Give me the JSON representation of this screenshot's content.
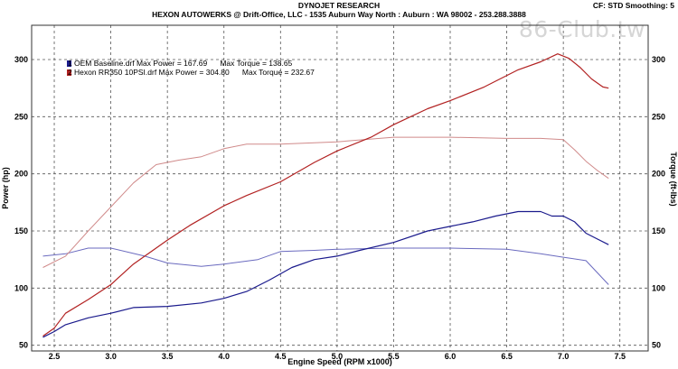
{
  "header": {
    "title": "DYNOJET RESEARCH",
    "subtitle": "HEXON AUTOWERKS @ Drift-Office, LLC - 1535 Auburn Way North : Auburn : WA 98002 - 253.288.3888",
    "settings": "CF: STD   Smoothing: 5"
  },
  "watermark": "86-Club.tw",
  "colors": {
    "baseline": "#1a1a8c",
    "tuned": "#b22222",
    "baseline_torque": "#6a6abf",
    "tuned_torque": "#d08a8a",
    "grid": "#555555"
  },
  "chart_data": {
    "type": "line",
    "xlabel": "Engine Speed (RPM x1000)",
    "ylabel": "Power (hp)",
    "y2label": "Torque (ft-lbs)",
    "xlim": [
      2.3,
      7.75
    ],
    "ylim": [
      45,
      330
    ],
    "xticks": [
      "2.5",
      "3.0",
      "3.5",
      "4.0",
      "4.5",
      "5.0",
      "5.5",
      "6.0",
      "6.5",
      "7.0",
      "7.5"
    ],
    "yticks": [
      "50",
      "100",
      "150",
      "200",
      "250",
      "300"
    ],
    "grid": true,
    "legend_position": "top-left",
    "legend": [
      {
        "marker": "1",
        "text": "OEM Baseline.drf Max Power = 167.69      Max Torque = 138.65"
      },
      {
        "marker": "2",
        "text": "Hexon RR350 10PSI.drf Max Power = 304.80      Max Torque = 232.67"
      }
    ],
    "series": [
      {
        "name": "OEM Baseline.drf Power",
        "color": "#1a1a8c",
        "x": [
          2.4,
          2.5,
          2.6,
          2.8,
          3.0,
          3.2,
          3.5,
          3.8,
          4.0,
          4.2,
          4.4,
          4.6,
          4.8,
          5.0,
          5.2,
          5.5,
          5.8,
          6.0,
          6.2,
          6.4,
          6.6,
          6.8,
          6.9,
          7.0,
          7.1,
          7.2,
          7.3,
          7.4
        ],
        "y": [
          57,
          62,
          68,
          74,
          78,
          83,
          84,
          87,
          91,
          97,
          107,
          118,
          125,
          128,
          133,
          140,
          150,
          154,
          158,
          163,
          167,
          167,
          163,
          163,
          158,
          148,
          143,
          138
        ]
      },
      {
        "name": "Hexon RR350 10PSI.drf Power",
        "color": "#b22222",
        "x": [
          2.4,
          2.5,
          2.6,
          2.8,
          3.0,
          3.2,
          3.5,
          3.7,
          4.0,
          4.2,
          4.5,
          4.8,
          5.0,
          5.3,
          5.5,
          5.8,
          6.0,
          6.3,
          6.6,
          6.8,
          6.95,
          7.05,
          7.15,
          7.25,
          7.35,
          7.4
        ],
        "y": [
          58,
          65,
          78,
          90,
          103,
          121,
          142,
          155,
          172,
          181,
          193,
          210,
          220,
          232,
          243,
          257,
          264,
          276,
          291,
          298,
          305,
          301,
          293,
          283,
          276,
          275
        ]
      },
      {
        "name": "OEM Baseline.drf Torque",
        "color": "#6a6abf",
        "x": [
          2.4,
          2.6,
          2.8,
          3.0,
          3.3,
          3.5,
          3.8,
          4.0,
          4.3,
          4.5,
          4.8,
          5.0,
          5.5,
          6.0,
          6.5,
          6.8,
          7.0,
          7.2,
          7.4
        ],
        "y": [
          128,
          130,
          135,
          135,
          128,
          122,
          119,
          121,
          125,
          132,
          133,
          134,
          135,
          135,
          134,
          130,
          127,
          124,
          103
        ]
      },
      {
        "name": "Hexon RR350 10PSI.drf Torque",
        "color": "#d08a8a",
        "x": [
          2.4,
          2.6,
          2.8,
          3.0,
          3.2,
          3.4,
          3.6,
          3.8,
          4.0,
          4.2,
          4.5,
          5.0,
          5.5,
          6.0,
          6.5,
          6.8,
          7.0,
          7.1,
          7.2,
          7.3,
          7.4
        ],
        "y": [
          118,
          128,
          150,
          171,
          192,
          208,
          212,
          215,
          222,
          226,
          226,
          228,
          232,
          232,
          231,
          231,
          230,
          221,
          211,
          203,
          196
        ]
      }
    ]
  }
}
